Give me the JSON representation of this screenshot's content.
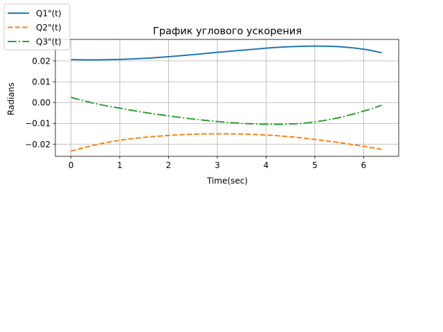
{
  "chart_data": {
    "type": "line",
    "title": "График углового ускорения",
    "xlabel": "Time(sec)",
    "ylabel": "Radians",
    "xlim": [
      -0.32,
      6.72
    ],
    "ylim": [
      -0.0258,
      0.0303
    ],
    "xticks": [
      0,
      1,
      2,
      3,
      4,
      5,
      6
    ],
    "xtick_labels": [
      "0",
      "1",
      "2",
      "3",
      "4",
      "5",
      "6"
    ],
    "yticks": [
      -0.02,
      -0.01,
      0.0,
      0.01,
      0.02
    ],
    "ytick_labels": [
      "−0.02",
      "−0.01",
      "0.00",
      "0.01",
      "0.02"
    ],
    "grid": true,
    "legend_position": "top-left",
    "series": [
      {
        "name": "Q1\"(t)",
        "color": "#1f77b4",
        "linestyle": "solid",
        "x": [
          0,
          0.5,
          1,
          1.5,
          2,
          2.5,
          3,
          3.5,
          4,
          4.5,
          5,
          5.5,
          6,
          6.37
        ],
        "y": [
          0.0206,
          0.0205,
          0.0207,
          0.0212,
          0.022,
          0.023,
          0.0241,
          0.0251,
          0.0261,
          0.0268,
          0.0271,
          0.0268,
          0.0256,
          0.0239
        ]
      },
      {
        "name": "Q2\"(t)",
        "color": "#ff7f0e",
        "linestyle": "dashed",
        "x": [
          0,
          0.5,
          1,
          1.5,
          2,
          2.5,
          3,
          3.5,
          4,
          4.5,
          5,
          5.5,
          6,
          6.37
        ],
        "y": [
          -0.0233,
          -0.0203,
          -0.0181,
          -0.0167,
          -0.0158,
          -0.0152,
          -0.015,
          -0.0151,
          -0.0156,
          -0.0164,
          -0.0177,
          -0.0192,
          -0.021,
          -0.0224
        ]
      },
      {
        "name": "Q3\"(t)",
        "color": "#2ca02c",
        "linestyle": "dashdot",
        "x": [
          0,
          0.5,
          1,
          1.5,
          2,
          2.5,
          3,
          3.5,
          4,
          4.5,
          5,
          5.5,
          6,
          6.37
        ],
        "y": [
          0.0025,
          -0.0005,
          -0.0027,
          -0.0047,
          -0.0064,
          -0.0079,
          -0.0091,
          -0.01,
          -0.0104,
          -0.0103,
          -0.0093,
          -0.0072,
          -0.0041,
          -0.0013
        ]
      }
    ]
  }
}
